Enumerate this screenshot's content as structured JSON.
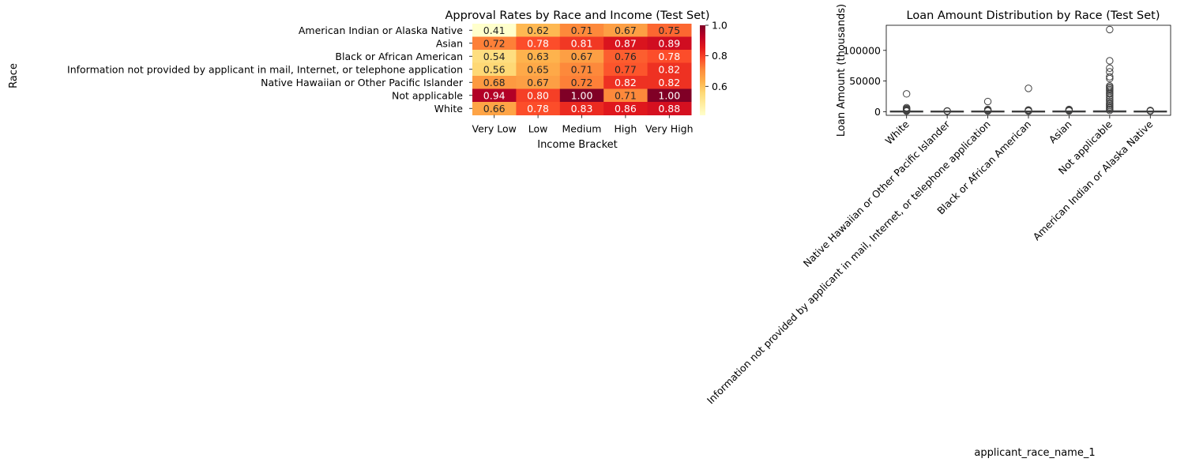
{
  "chart_data": [
    {
      "type": "heatmap",
      "title": "Approval Rates by Race and Income (Test Set)",
      "xlabel": "Income Bracket",
      "ylabel": "Race",
      "x_categories": [
        "Very Low",
        "Low",
        "Medium",
        "High",
        "Very High"
      ],
      "y_categories": [
        "American Indian or Alaska Native",
        "Asian",
        "Black or African American",
        "Information not provided by applicant in mail, Internet, or telephone application",
        "Native Hawaiian or Other Pacific Islander",
        "Not applicable",
        "White"
      ],
      "values": [
        [
          0.41,
          0.62,
          0.71,
          0.67,
          0.75
        ],
        [
          0.72,
          0.78,
          0.81,
          0.87,
          0.89
        ],
        [
          0.54,
          0.63,
          0.67,
          0.76,
          0.78
        ],
        [
          0.56,
          0.65,
          0.71,
          0.77,
          0.82
        ],
        [
          0.68,
          0.67,
          0.72,
          0.82,
          0.82
        ],
        [
          0.94,
          0.8,
          1.0,
          0.71,
          1.0
        ],
        [
          0.66,
          0.78,
          0.83,
          0.86,
          0.88
        ]
      ],
      "colormap": "YlOrRd",
      "vmin": 0.41,
      "vmax": 1.0,
      "colorbar_ticks": [
        0.6,
        0.8,
        1.0
      ],
      "colorbar_tick_labels": [
        "0.6",
        "0.8",
        "1.0"
      ]
    },
    {
      "type": "box",
      "title": "Loan Amount Distribution by Race (Test Set)",
      "xlabel": "applicant_race_name_1",
      "ylabel": "Loan Amount (thousands)",
      "ylim": [
        -6000,
        141000
      ],
      "yticks": [
        0,
        50000,
        100000
      ],
      "ytick_labels": [
        "0",
        "50000",
        "100000"
      ],
      "categories": [
        "White",
        "Native Hawaiian or Other Pacific Islander",
        "Information not provided by applicant in mail, Internet, or telephone application",
        "Black or African American",
        "Asian",
        "Not applicable",
        "American Indian or Alaska Native"
      ],
      "boxes": [
        {
          "q1": 100,
          "median": 200,
          "q3": 350,
          "whisker_low": 0,
          "whisker_high": 700,
          "outliers": [
            800,
            1200,
            1800,
            2500,
            3500,
            4800,
            6500,
            29000
          ]
        },
        {
          "q1": 100,
          "median": 180,
          "q3": 300,
          "whisker_low": 0,
          "whisker_high": 600,
          "outliers": [
            700,
            900,
            1200
          ]
        },
        {
          "q1": 120,
          "median": 230,
          "q3": 380,
          "whisker_low": 0,
          "whisker_high": 780,
          "outliers": [
            1000,
            1600,
            2600,
            3500,
            16500
          ]
        },
        {
          "q1": 100,
          "median": 190,
          "q3": 320,
          "whisker_low": 0,
          "whisker_high": 650,
          "outliers": [
            800,
            1200,
            2000,
            2800,
            38000
          ]
        },
        {
          "q1": 150,
          "median": 280,
          "q3": 450,
          "whisker_low": 0,
          "whisker_high": 900,
          "outliers": [
            1200,
            2200,
            3000,
            3600
          ]
        },
        {
          "q1": 150,
          "median": 300,
          "q3": 600,
          "whisker_low": 0,
          "whisker_high": 1200,
          "outliers": [
            2000,
            4000,
            6000,
            8000,
            10000,
            12000,
            14000,
            17000,
            20000,
            23000,
            26000,
            29000,
            31000,
            34000,
            36000,
            38000,
            40000,
            42000,
            54000,
            57000,
            65000,
            71000,
            83000,
            134000
          ]
        },
        {
          "q1": 100,
          "median": 200,
          "q3": 350,
          "whisker_low": 0,
          "whisker_high": 700,
          "outliers": [
            900,
            1300,
            1900
          ]
        }
      ]
    }
  ]
}
